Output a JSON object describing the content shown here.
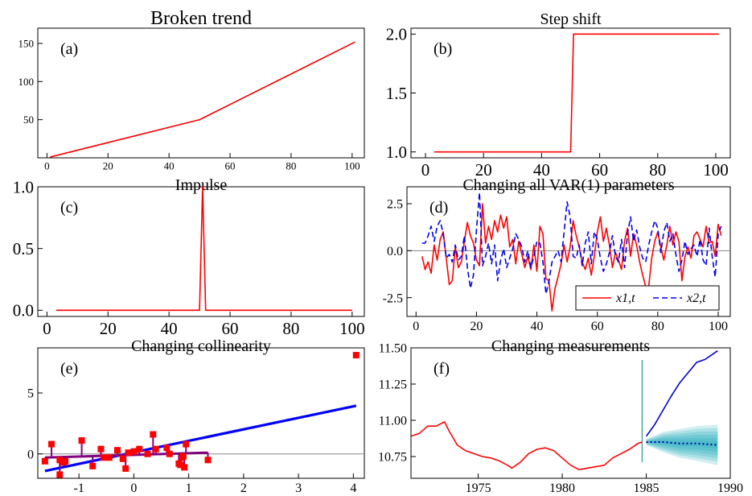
{
  "chart_data": [
    {
      "id": "a",
      "type": "line",
      "title": "Broken trend",
      "panel_label": "(a)",
      "xlim": [
        -3,
        104
      ],
      "ylim": [
        0,
        170
      ],
      "xticks": [
        0,
        20,
        40,
        60,
        80,
        100
      ],
      "yticks": [
        50,
        100,
        150
      ],
      "series": [
        {
          "color": "#ff0000",
          "x": [
            1,
            50,
            101
          ],
          "y": [
            1,
            50,
            152
          ]
        }
      ]
    },
    {
      "id": "b",
      "type": "line",
      "title": "Step shift",
      "panel_label": "(b)",
      "xlim": [
        -5,
        105
      ],
      "ylim": [
        0.95,
        2.05
      ],
      "xticks": [
        0,
        20,
        40,
        60,
        80,
        100
      ],
      "yticks": [
        1.0,
        1.5,
        2.0
      ],
      "yticklabels": [
        "1.0",
        "1.5",
        "2.0"
      ],
      "series": [
        {
          "color": "#ff0000",
          "x": [
            3,
            50,
            51,
            101
          ],
          "y": [
            1,
            1,
            2,
            2
          ]
        }
      ]
    },
    {
      "id": "c",
      "type": "line",
      "title": "Impulse",
      "panel_label": "(c)",
      "xlim": [
        -3,
        104
      ],
      "ylim": [
        -0.05,
        1.0
      ],
      "xticks": [
        0,
        20,
        40,
        60,
        80,
        100
      ],
      "yticks": [
        0.0,
        0.5,
        1.0
      ],
      "yticklabels": [
        "0.0",
        "0.5",
        "1.0"
      ],
      "series": [
        {
          "color": "#ff0000",
          "x": [
            3,
            50,
            51,
            52,
            100
          ],
          "y": [
            0,
            0,
            1,
            0,
            0
          ]
        }
      ]
    },
    {
      "id": "d",
      "type": "line",
      "title": "Changing all VAR(1) parameters",
      "panel_label": "(d)",
      "xlim": [
        -3,
        104
      ],
      "ylim": [
        -3.5,
        3.4
      ],
      "xticks": [
        0,
        20,
        40,
        60,
        80,
        100
      ],
      "yticks": [
        -2.5,
        0.0,
        2.5
      ],
      "yticklabels": [
        "-2.5",
        "0.0",
        "2.5"
      ],
      "zero_line": true,
      "legend": {
        "position": "bottom-right",
        "entries": [
          "x1,t",
          "x2,t"
        ]
      },
      "series": [
        {
          "name": "x1,t",
          "color": "#ff0000",
          "style": "solid",
          "x": [
            2,
            3,
            4,
            5,
            6,
            7,
            8,
            9,
            10,
            11,
            12,
            13,
            14,
            15,
            16,
            17,
            18,
            19,
            20,
            21,
            22,
            23,
            24,
            25,
            26,
            27,
            28,
            29,
            30,
            31,
            32,
            33,
            34,
            35,
            36,
            37,
            38,
            39,
            40,
            41,
            42,
            43,
            44,
            45,
            46,
            47,
            48,
            49,
            50,
            51,
            52,
            53,
            54,
            55,
            56,
            57,
            58,
            59,
            60,
            61,
            62,
            63,
            64,
            65,
            66,
            67,
            68,
            69,
            70,
            71,
            72,
            73,
            74,
            75,
            76,
            77,
            78,
            79,
            80,
            81,
            82,
            83,
            84,
            85,
            86,
            87,
            88,
            89,
            90,
            91,
            92,
            93,
            94,
            95,
            96,
            97,
            98,
            99,
            100,
            101
          ],
          "y": [
            -0.3,
            -1.0,
            -0.6,
            -1.2,
            0.3,
            -0.5,
            0.6,
            1.0,
            -0.4,
            -1.8,
            -1.6,
            0.2,
            -0.9,
            -0.6,
            0.5,
            1.5,
            0.8,
            0.4,
            -0.5,
            -0.8,
            2.5,
            0.4,
            1.3,
            0.6,
            1.6,
            1.0,
            1.9,
            1.2,
            1.8,
            0.2,
            0.6,
            -0.7,
            0.5,
            -0.2,
            -0.9,
            -0.3,
            -1.0,
            0.3,
            -1.1,
            1.3,
            0.9,
            -1.5,
            -1.6,
            -3.2,
            -2.0,
            -1.4,
            -0.7,
            0.3,
            -0.6,
            0.2,
            1.6,
            0.8,
            0.2,
            -0.6,
            -1.0,
            -0.4,
            -1.3,
            -0.3,
            1.0,
            1.8,
            0.5,
            1.2,
            0.3,
            -0.9,
            -0.1,
            -0.5,
            -1.0,
            0.5,
            1.2,
            -0.3,
            0.9,
            0.3,
            -0.6,
            -1.3,
            -1.9,
            -1.9,
            -0.4,
            0.5,
            1.0,
            0.2,
            -0.5,
            0.3,
            1.3,
            0.3,
            1.0,
            0.5,
            -1.6,
            -0.3,
            0.2,
            -0.4,
            0.8,
            1.0,
            0.6,
            0.2,
            1.3,
            0.4,
            0.5,
            -0.3,
            1.4,
            0.8
          ]
        },
        {
          "name": "x2,t",
          "color": "#0000ee",
          "style": "dashed",
          "x": [
            2,
            3,
            4,
            5,
            6,
            7,
            8,
            9,
            10,
            11,
            12,
            13,
            14,
            15,
            16,
            17,
            18,
            19,
            20,
            21,
            22,
            23,
            24,
            25,
            26,
            27,
            28,
            29,
            30,
            31,
            32,
            33,
            34,
            35,
            36,
            37,
            38,
            39,
            40,
            41,
            42,
            43,
            44,
            45,
            46,
            47,
            48,
            49,
            50,
            51,
            52,
            53,
            54,
            55,
            56,
            57,
            58,
            59,
            60,
            61,
            62,
            63,
            64,
            65,
            66,
            67,
            68,
            69,
            70,
            71,
            72,
            73,
            74,
            75,
            76,
            77,
            78,
            79,
            80,
            81,
            82,
            83,
            84,
            85,
            86,
            87,
            88,
            89,
            90,
            91,
            92,
            93,
            94,
            95,
            96,
            97,
            98,
            99,
            100,
            101
          ],
          "y": [
            0.4,
            0.4,
            0.8,
            1.3,
            0.5,
            1.3,
            1.6,
            0.9,
            -0.4,
            -0.2,
            -0.6,
            0.3,
            -0.5,
            -0.3,
            0.8,
            -0.9,
            -2.0,
            -1.3,
            1.1,
            3.1,
            -0.8,
            -0.3,
            0.4,
            -0.7,
            0.3,
            -1.6,
            -0.5,
            0.1,
            -0.9,
            -0.4,
            0.1,
            0.9,
            0.6,
            0.2,
            -0.6,
            0.0,
            -0.9,
            -0.3,
            0.5,
            0.4,
            -0.6,
            -2.3,
            -1.6,
            -0.6,
            -0.3,
            0.0,
            -0.6,
            1.0,
            2.6,
            1.8,
            -0.3,
            -0.4,
            0.3,
            -0.8,
            0.4,
            1.0,
            -0.7,
            1.0,
            0.6,
            -0.4,
            -1.1,
            -0.7,
            -0.1,
            0.8,
            -0.3,
            -0.6,
            0.6,
            -0.9,
            0.9,
            1.8,
            0.5,
            1.1,
            0.2,
            -0.4,
            -0.6,
            0.3,
            1.0,
            1.6,
            1.2,
            -0.1,
            1.0,
            1.5,
            0.5,
            0.9,
            -0.2,
            -1.1,
            -0.5,
            0.5,
            -0.2,
            0.1,
            0.3,
            -0.3,
            0.6,
            -0.5,
            -0.8,
            1.2,
            -0.3,
            -1.4,
            0.9,
            1.3
          ]
        }
      ]
    },
    {
      "id": "e",
      "type": "scatter",
      "title": "Changing collinearity",
      "panel_label": "(e)",
      "xlim": [
        -1.75,
        4.2
      ],
      "ylim": [
        -2.0,
        8.7
      ],
      "xticks": [
        -1,
        0,
        1,
        2,
        3,
        4
      ],
      "yticks": [
        0,
        5
      ],
      "zero_line": true,
      "points": {
        "color": "#ff0000",
        "x": [
          -1.62,
          -1.5,
          -1.35,
          -1.28,
          -1.35,
          -1.25,
          -0.95,
          -0.75,
          -0.6,
          -0.55,
          -0.45,
          -0.3,
          -0.2,
          -0.15,
          -0.1,
          0.0,
          0.1,
          0.25,
          0.35,
          0.4,
          0.6,
          0.65,
          0.82,
          0.85,
          0.88,
          0.9,
          0.92,
          0.95,
          1.35,
          4.05
        ],
        "y": [
          -0.6,
          0.8,
          -0.5,
          -0.7,
          -1.7,
          -0.6,
          1.1,
          -1.0,
          0.4,
          -0.3,
          -0.3,
          0.3,
          -0.4,
          -1.2,
          0.1,
          0.2,
          0.4,
          0.0,
          1.6,
          0.4,
          0.5,
          0.0,
          -0.8,
          -0.9,
          -0.3,
          -0.2,
          -1.1,
          0.8,
          -0.5,
          8.1
        ]
      },
      "fit_lines": [
        {
          "color": "#0000ff",
          "x": [
            -1.62,
            4.05
          ],
          "y": [
            -1.4,
            3.95
          ]
        },
        {
          "color": "#800080",
          "x": [
            -1.62,
            1.35
          ],
          "y": [
            -0.3,
            0.1
          ]
        }
      ],
      "residuals_color": "#800080"
    },
    {
      "id": "f",
      "type": "line",
      "title": "Changing measurements",
      "panel_label": "(f)",
      "xlim": [
        1971.0,
        1990.0
      ],
      "ylim": [
        10.6,
        11.5
      ],
      "xticks": [
        1975,
        1980,
        1985,
        1990
      ],
      "yticks": [
        10.75,
        11.0,
        11.25,
        11.5
      ],
      "yticklabels": [
        "10.75",
        "11.00",
        "11.25",
        "11.50"
      ],
      "vertical_line": {
        "x": 1984.75,
        "color": "#008080"
      },
      "series": [
        {
          "color": "#ff0000",
          "x": [
            1971.0,
            1971.5,
            1972.0,
            1972.5,
            1973.0,
            1973.25,
            1973.75,
            1974.25,
            1974.75,
            1975.25,
            1975.75,
            1976.25,
            1976.75,
            1977.0,
            1977.5,
            1978.0,
            1978.5,
            1979.0,
            1979.5,
            1980.0,
            1980.5,
            1981.0,
            1981.5,
            1982.0,
            1982.5,
            1983.0,
            1983.5,
            1984.0,
            1984.5,
            1984.75
          ],
          "y": [
            10.89,
            10.91,
            10.96,
            10.96,
            10.99,
            10.93,
            10.83,
            10.79,
            10.77,
            10.75,
            10.74,
            10.72,
            10.69,
            10.67,
            10.71,
            10.77,
            10.8,
            10.81,
            10.79,
            10.74,
            10.69,
            10.66,
            10.67,
            10.68,
            10.69,
            10.74,
            10.77,
            10.8,
            10.84,
            10.85
          ]
        },
        {
          "color": "#0000cc",
          "x": [
            1985.0,
            1985.5,
            1986.0,
            1986.5,
            1987.0,
            1987.5,
            1988.0,
            1988.5,
            1989.0,
            1989.25
          ],
          "y": [
            10.89,
            10.97,
            11.07,
            11.17,
            11.26,
            11.33,
            11.4,
            11.42,
            11.46,
            11.48
          ]
        },
        {
          "color": "#0000aa",
          "style": "dotted",
          "x": [
            1985.0,
            1986.0,
            1987.0,
            1988.0,
            1989.25
          ],
          "y": [
            10.85,
            10.85,
            10.84,
            10.84,
            10.83
          ]
        }
      ],
      "fan": {
        "color": "#00a0b0",
        "x": [
          1985.0,
          1986.0,
          1987.0,
          1988.0,
          1989.25
        ],
        "center": [
          10.85,
          10.85,
          10.84,
          10.84,
          10.83
        ],
        "outer_halfwidth": [
          0.02,
          0.07,
          0.1,
          0.12,
          0.14
        ]
      }
    }
  ]
}
